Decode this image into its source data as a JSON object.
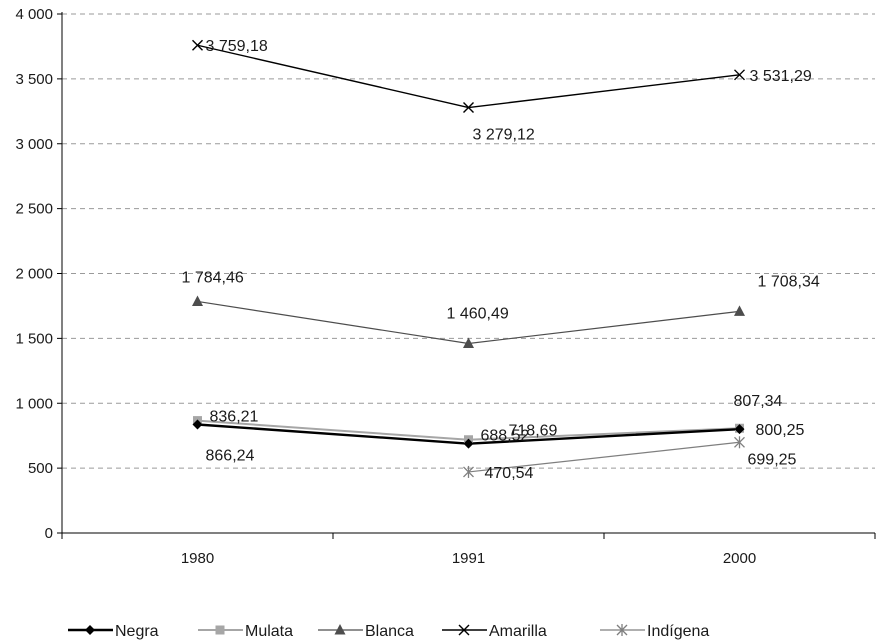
{
  "chart_data": {
    "type": "line",
    "title": "",
    "xlabel": "",
    "ylabel": "",
    "categories": [
      "1980",
      "1991",
      "2000"
    ],
    "ylim": [
      0,
      4000
    ],
    "y_ticks": [
      0,
      500,
      1000,
      1500,
      2000,
      2500,
      3000,
      3500,
      4000
    ],
    "y_tick_labels": [
      "0",
      "500",
      "1 000",
      "1 500",
      "2 000",
      "2 500",
      "3 000",
      "3 500",
      "4 000"
    ],
    "grid": "horizontal dashed",
    "legend_position": "bottom",
    "series": [
      {
        "name": "Negra",
        "values": [
          836.21,
          688.52,
          800.25
        ],
        "labels": [
          "836,21",
          "688,52",
          "800,25"
        ],
        "color": "#000000",
        "marker": "diamond"
      },
      {
        "name": "Mulata",
        "values": [
          866.24,
          718.69,
          807.34
        ],
        "labels": [
          "866,24",
          "718,69",
          "807,34"
        ],
        "color": "#a6a6a6",
        "marker": "square"
      },
      {
        "name": "Blanca",
        "values": [
          1784.46,
          1460.49,
          1708.34
        ],
        "labels": [
          "1 784,46",
          "1 460,49",
          "1 708,34"
        ],
        "color": "#4d4d4d",
        "marker": "triangle"
      },
      {
        "name": "Amarilla",
        "values": [
          3759.18,
          3279.12,
          3531.29
        ],
        "labels": [
          "3 759,18",
          "3 279,12",
          "3 531,29"
        ],
        "color": "#000000",
        "marker": "x"
      },
      {
        "name": "Indígena",
        "values": [
          null,
          470.54,
          699.25
        ],
        "labels": [
          "",
          "470,54",
          "699,25"
        ],
        "color": "#7f7f7f",
        "marker": "asterisk"
      }
    ]
  }
}
